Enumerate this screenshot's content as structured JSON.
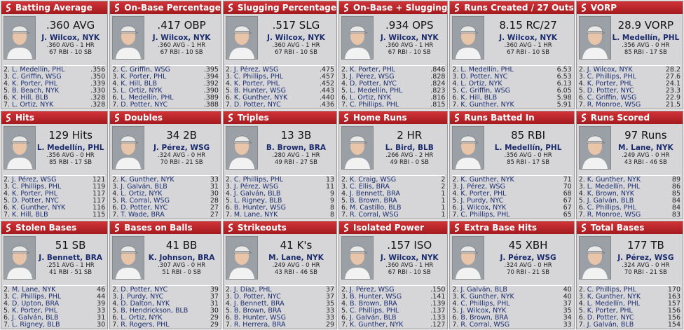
{
  "cards": [
    {
      "title": "Batting Average",
      "stat": ".360 AVG",
      "leader": "J. Wilcox, NYK",
      "line1": ".360 AVG - 1 HR",
      "line2": "67 RBI - 10 SB",
      "list": [
        [
          "2.",
          "L. Medellín, PHL",
          ".356"
        ],
        [
          "3.",
          "C. Griffin, WSG",
          ".350"
        ],
        [
          "4.",
          "K. Porter, PHL",
          ".339"
        ],
        [
          "5.",
          "B. Beach, NYK",
          ".330"
        ],
        [
          "6.",
          "K. Hill, BLB",
          ".328"
        ],
        [
          "7.",
          "L. Ortiz, NYK",
          ".328"
        ]
      ]
    },
    {
      "title": "On-Base Percentage",
      "stat": ".417 OBP",
      "leader": "J. Wilcox, NYK",
      "line1": ".360 AVG - 1 HR",
      "line2": "67 RBI - 10 SB",
      "list": [
        [
          "2.",
          "C. Griffin, WSG",
          ".395"
        ],
        [
          "3.",
          "K. Porter, PHL",
          ".394"
        ],
        [
          "4.",
          "K. Hill, BLB",
          ".392"
        ],
        [
          "5.",
          "L. Ortiz, NYK",
          ".390"
        ],
        [
          "6.",
          "L. Medellín, PHL",
          ".389"
        ],
        [
          "7.",
          "D. Potter, NYC",
          ".388"
        ]
      ]
    },
    {
      "title": "Slugging Percentage",
      "stat": ".517 SLG",
      "leader": "J. Wilcox, NYK",
      "line1": ".360 AVG - 1 HR",
      "line2": "67 RBI - 10 SB",
      "list": [
        [
          "2.",
          "J. Pérez, WSG",
          ".475"
        ],
        [
          "3.",
          "C. Phillips, PHL",
          ".457"
        ],
        [
          "4.",
          "K. Porter, PHL",
          ".452"
        ],
        [
          "5.",
          "B. Hunter, WSG",
          ".443"
        ],
        [
          "6.",
          "K. Gunther, NYK",
          ".440"
        ],
        [
          "7.",
          "D. Potter, NYC",
          ".436"
        ]
      ]
    },
    {
      "title": "On-Base + Slugging",
      "stat": ".934 OPS",
      "leader": "J. Wilcox, NYK",
      "line1": ".360 AVG - 1 HR",
      "line2": "67 RBI - 10 SB",
      "list": [
        [
          "2.",
          "K. Porter, PHL",
          ".846"
        ],
        [
          "3.",
          "J. Pérez, WSG",
          ".828"
        ],
        [
          "4.",
          "D. Potter, NYC",
          ".824"
        ],
        [
          "5.",
          "L. Medellín, PHL",
          ".823"
        ],
        [
          "6.",
          "L. Ortiz, NYK",
          ".816"
        ],
        [
          "7.",
          "C. Phillips, PHL",
          ".815"
        ]
      ]
    },
    {
      "title": "Runs Created / 27 Outs",
      "stat": "8.15 RC/27",
      "leader": "J. Wilcox, NYK",
      "line1": ".360 AVG - 1 HR",
      "line2": "67 RBI - 10 SB",
      "list": [
        [
          "2.",
          "L. Medellín, PHL",
          "6.53"
        ],
        [
          "3.",
          "D. Potter, NYC",
          "6.53"
        ],
        [
          "4.",
          "L. Ortiz, NYK",
          "6.13"
        ],
        [
          "5.",
          "C. Griffin, WSG",
          "6.05"
        ],
        [
          "6.",
          "K. Hill, BLB",
          "5.98"
        ],
        [
          "7.",
          "K. Gunther, NYK",
          "5.91"
        ]
      ]
    },
    {
      "title": "VORP",
      "stat": "28.9 VORP",
      "leader": "L. Medellín, PHL",
      "line1": ".356 AVG - 0 HR",
      "line2": "85 RBI - 17 SB",
      "list": [
        [
          "2.",
          "J. Wilcox, NYK",
          "28.2"
        ],
        [
          "3.",
          "C. Phillips, PHL",
          "27.6"
        ],
        [
          "4.",
          "K. Porter, PHL",
          "24.1"
        ],
        [
          "5.",
          "D. Potter, NYC",
          "23.3"
        ],
        [
          "6.",
          "C. Griffin, WSG",
          "22.9"
        ],
        [
          "7.",
          "R. Monroe, WSG",
          "21.5"
        ]
      ]
    },
    {
      "title": "Hits",
      "stat": "129 Hits",
      "leader": "L. Medellín, PHL",
      "line1": ".356 AVG - 0 HR",
      "line2": "85 RBI - 17 SB",
      "list": [
        [
          "2.",
          "J. Pérez, WSG",
          "121"
        ],
        [
          "3.",
          "C. Phillips, PHL",
          "119"
        ],
        [
          "4.",
          "K. Porter, PHL",
          "117"
        ],
        [
          "5.",
          "D. Potter, NYC",
          "117"
        ],
        [
          "6.",
          "K. Gunther, NYK",
          "116"
        ],
        [
          "7.",
          "K. Hill, BLB",
          "115"
        ]
      ]
    },
    {
      "title": "Doubles",
      "stat": "34 2B",
      "leader": "J. Pérez, WSG",
      "line1": ".324 AVG - 0 HR",
      "line2": "70 RBI - 21 SB",
      "list": [
        [
          "2.",
          "K. Gunther, NYK",
          "33"
        ],
        [
          "3.",
          "J. Galván, BLB",
          "31"
        ],
        [
          "4.",
          "L. Ortiz, NYK",
          "30"
        ],
        [
          "5.",
          "R. Corral, WSG",
          "28"
        ],
        [
          "6.",
          "D. Potter, NYC",
          "27"
        ],
        [
          "7.",
          "T. Wade, BRA",
          "27"
        ]
      ]
    },
    {
      "title": "Triples",
      "stat": "13 3B",
      "leader": "B. Brown, BRA",
      "line1": ".280 AVG - 1 HR",
      "line2": "49 RBI - 27 SB",
      "list": [
        [
          "2.",
          "C. Phillips, PHL",
          "13"
        ],
        [
          "3.",
          "J. Pérez, WSG",
          "11"
        ],
        [
          "4.",
          "J. Galván, BLB",
          "9"
        ],
        [
          "5.",
          "L. Rigney, BLB",
          "9"
        ],
        [
          "6.",
          "B. Hunter, WSG",
          "8"
        ],
        [
          "7.",
          "M. Lane, NYK",
          "8"
        ]
      ]
    },
    {
      "title": "Home Runs",
      "stat": "2 HR",
      "leader": "L. Bird, BLB",
      "line1": ".266 AVG - 2 HR",
      "line2": "49 RBI - 0 SB",
      "list": [
        [
          "2.",
          "K. Craig, WSG",
          "2"
        ],
        [
          "3.",
          "C. Ellis, BRA",
          "2"
        ],
        [
          "4.",
          "J. Bennett, BRA",
          "1"
        ],
        [
          "5.",
          "B. Brown, BRA",
          "1"
        ],
        [
          "6.",
          "M. Castillo, BLB",
          "1"
        ],
        [
          "7.",
          "R. Corral, WSG",
          "1"
        ]
      ]
    },
    {
      "title": "Runs Batted In",
      "stat": "85 RBI",
      "leader": "L. Medellín, PHL",
      "line1": ".356 AVG - 0 HR",
      "line2": "85 RBI - 17 SB",
      "list": [
        [
          "2.",
          "K. Gunther, NYK",
          "71"
        ],
        [
          "3.",
          "J. Pérez, WSG",
          "70"
        ],
        [
          "4.",
          "K. Porter, PHL",
          "68"
        ],
        [
          "5.",
          "J. Purdy, NYC",
          "67"
        ],
        [
          "6.",
          "J. Wilcox, NYK",
          "67"
        ],
        [
          "7.",
          "C. Phillips, PHL",
          "65"
        ]
      ]
    },
    {
      "title": "Runs Scored",
      "stat": "97 Runs",
      "leader": "M. Lane, NYK",
      "line1": ".249 AVG - 0 HR",
      "line2": "43 RBI - 46 SB",
      "list": [
        [
          "2.",
          "K. Gunther, NYK",
          "89"
        ],
        [
          "3.",
          "L. Medellín, PHL",
          "86"
        ],
        [
          "4.",
          "K. Brown, NYK",
          "85"
        ],
        [
          "5.",
          "J. Galván, BLB",
          "84"
        ],
        [
          "6.",
          "C. Phillips, PHL",
          "84"
        ],
        [
          "7.",
          "R. Monroe, WSG",
          "83"
        ]
      ]
    },
    {
      "title": "Stolen Bases",
      "stat": "51 SB",
      "leader": "J. Bennett, BRA",
      "line1": ".251 AVG - 1 HR",
      "line2": "41 RBI - 51 SB",
      "list": [
        [
          "2.",
          "M. Lane, NYK",
          "46"
        ],
        [
          "3.",
          "C. Phillips, PHL",
          "44"
        ],
        [
          "4.",
          "D. Upton, BRA",
          "39"
        ],
        [
          "5.",
          "K. Porter, PHL",
          "33"
        ],
        [
          "6.",
          "J. Galván, BLB",
          "31"
        ],
        [
          "7.",
          "L. Rigney, BLB",
          "30"
        ]
      ]
    },
    {
      "title": "Bases on Balls",
      "stat": "41 BB",
      "leader": "K. Johnson, BRA",
      "line1": ".307 AVG - 0 HR",
      "line2": "51 RBI - 0 SB",
      "list": [
        [
          "2.",
          "D. Potter, NYC",
          "39"
        ],
        [
          "3.",
          "J. Purdy, NYC",
          "37"
        ],
        [
          "4.",
          "D. Dalton, NYK",
          "31"
        ],
        [
          "5.",
          "B. Hendrickson, BLB",
          "30"
        ],
        [
          "6.",
          "L. Ortiz, NYK",
          "29"
        ],
        [
          "7.",
          "R. Rogers, PHL",
          "29"
        ]
      ]
    },
    {
      "title": "Strikeouts",
      "stat": "41 K's",
      "leader": "M. Lane, NYK",
      "line1": ".249 AVG - 0 HR",
      "line2": "43 RBI - 46 SB",
      "list": [
        [
          "2.",
          "J. Díaz, PHL",
          "37"
        ],
        [
          "3.",
          "D. Potter, NYC",
          "37"
        ],
        [
          "4.",
          "J. Bennett, BRA",
          "35"
        ],
        [
          "5.",
          "B. Brown, BRA",
          "33"
        ],
        [
          "6.",
          "B. Hunter, WSG",
          "33"
        ],
        [
          "7.",
          "R. Herrera, BRA",
          "29"
        ]
      ]
    },
    {
      "title": "Isolated Power",
      "stat": ".157 ISO",
      "leader": "J. Wilcox, NYK",
      "line1": ".360 AVG - 1 HR",
      "line2": "67 RBI - 10 SB",
      "list": [
        [
          "2.",
          "J. Pérez, WSG",
          ".150"
        ],
        [
          "3.",
          "B. Hunter, WSG",
          ".141"
        ],
        [
          "4.",
          "B. Brown, BRA",
          ".139"
        ],
        [
          "5.",
          "C. Phillips, PHL",
          ".137"
        ],
        [
          "6.",
          "J. Galván, BLB",
          ".133"
        ],
        [
          "7.",
          "K. Gunther, NYK",
          ".127"
        ]
      ]
    },
    {
      "title": "Extra Base Hits",
      "stat": "45 XBH",
      "leader": "J. Pérez, WSG",
      "line1": ".324 AVG - 0 HR",
      "line2": "70 RBI - 21 SB",
      "list": [
        [
          "2.",
          "J. Galván, BLB",
          "40"
        ],
        [
          "3.",
          "K. Gunther, NYK",
          "40"
        ],
        [
          "4.",
          "C. Phillips, PHL",
          "37"
        ],
        [
          "5.",
          "J. Wilcox, NYK",
          "35"
        ],
        [
          "6.",
          "B. Brown, BRA",
          "34"
        ],
        [
          "7.",
          "R. Corral, WSG",
          "33"
        ]
      ]
    },
    {
      "title": "Total Bases",
      "stat": "177 TB",
      "leader": "J. Pérez, WSG",
      "line1": ".324 AVG - 0 HR",
      "line2": "70 RBI - 21 SB",
      "list": [
        [
          "2.",
          "C. Phillips, PHL",
          "170"
        ],
        [
          "3.",
          "K. Gunther, NYK",
          "163"
        ],
        [
          "4.",
          "L. Medellín, PHL",
          "157"
        ],
        [
          "5.",
          "K. Porter, PHL",
          "156"
        ],
        [
          "6.",
          "D. Potter, NYC",
          "156"
        ],
        [
          "7.",
          "J. Galván, BLB",
          "154"
        ]
      ]
    }
  ]
}
